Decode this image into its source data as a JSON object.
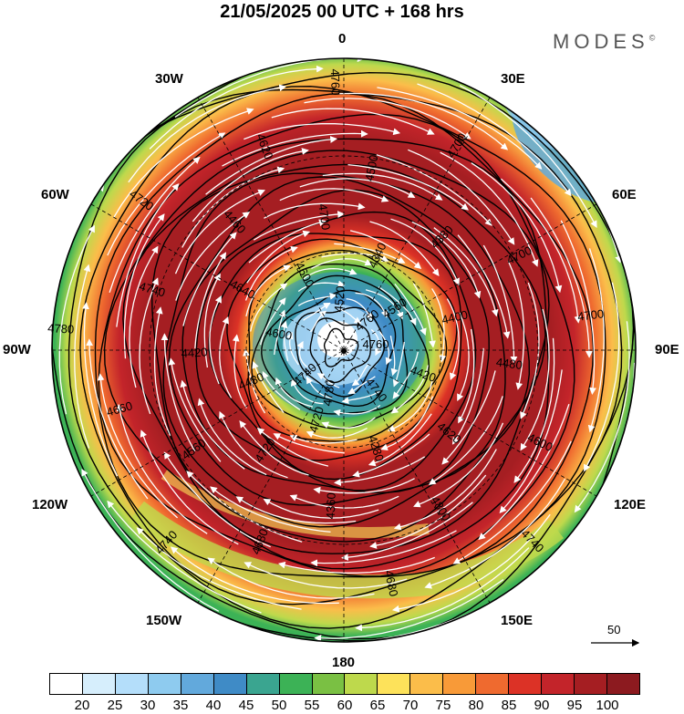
{
  "header": {
    "title": "21/05/2025  00 UTC  + 168 hrs",
    "brand": "MODES",
    "brand_mark": "©"
  },
  "map": {
    "longitude_labels": [
      {
        "key": "0",
        "text": "0"
      },
      {
        "key": "30E",
        "text": "30E"
      },
      {
        "key": "60E",
        "text": "60E"
      },
      {
        "key": "90E",
        "text": "90E"
      },
      {
        "key": "120E",
        "text": "120E"
      },
      {
        "key": "150E",
        "text": "150E"
      },
      {
        "key": "180",
        "text": "180"
      },
      {
        "key": "150W",
        "text": "150W"
      },
      {
        "key": "120W",
        "text": "120W"
      },
      {
        "key": "90W",
        "text": "90W"
      },
      {
        "key": "60W",
        "text": "60W"
      },
      {
        "key": "30W",
        "text": "30W"
      }
    ],
    "contour_labels": [
      "4760",
      "4740",
      "4520",
      "4740",
      "4600",
      "4560",
      "4720",
      "4600",
      "4420",
      "4480",
      "4340",
      "4280",
      "4640",
      "4400",
      "4720",
      "4700",
      "4620",
      "4420",
      "4380",
      "4360",
      "4460",
      "4480",
      "4560",
      "4500",
      "4800",
      "4740",
      "4700",
      "4680",
      "4620",
      "4600",
      "4660",
      "4700",
      "4680",
      "4720",
      "4700",
      "4740",
      "4760",
      "4740",
      "4780",
      "4760",
      "4780"
    ],
    "vector_scale_label": "50"
  },
  "legend": {
    "ticks": [
      "20",
      "25",
      "30",
      "35",
      "40",
      "45",
      "50",
      "55",
      "60",
      "65",
      "70",
      "75",
      "80",
      "85",
      "90",
      "95",
      "100"
    ],
    "colors": [
      "#ffffff",
      "#d6eefc",
      "#b4defa",
      "#8ecbef",
      "#62a9dc",
      "#3f8bc6",
      "#3aa590",
      "#3cb256",
      "#7ac043",
      "#bed94c",
      "#fde25a",
      "#fbbd4a",
      "#f89a38",
      "#ef6a2f",
      "#dc3226",
      "#c3242a",
      "#a51e22",
      "#8c1a1f"
    ]
  }
}
